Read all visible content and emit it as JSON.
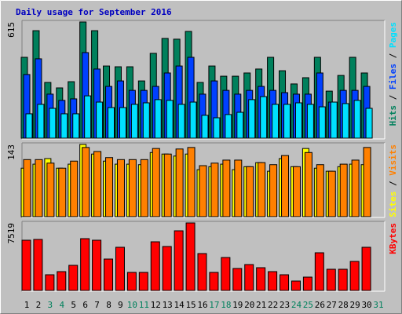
{
  "title": "Daily usage for September 2016",
  "legend_separator": "/",
  "chart_data": [
    {
      "type": "bar",
      "ylim": [
        0,
        615
      ],
      "yticks": [
        615
      ],
      "series": [
        {
          "name": "Hits",
          "color": "#00805c",
          "values": [
            428,
            569,
            295,
            266,
            299,
            615,
            569,
            382,
            378,
            378,
            303,
            449,
            528,
            524,
            565,
            295,
            382,
            328,
            328,
            345,
            366,
            428,
            357,
            287,
            320,
            428,
            249,
            332,
            428,
            345,
            null
          ]
        },
        {
          "name": "Files",
          "color": "#0040ff",
          "values": [
            337,
            420,
            233,
            200,
            208,
            453,
            366,
            274,
            303,
            253,
            253,
            274,
            345,
            382,
            428,
            233,
            303,
            253,
            233,
            253,
            274,
            253,
            241,
            233,
            233,
            345,
            191,
            253,
            253,
            274,
            null
          ]
        },
        {
          "name": "Pages",
          "color": "#00e0ff",
          "values": [
            129,
            179,
            158,
            129,
            129,
            224,
            191,
            162,
            162,
            179,
            187,
            204,
            200,
            179,
            191,
            121,
            108,
            125,
            137,
            204,
            220,
            179,
            179,
            187,
            179,
            166,
            191,
            183,
            200,
            158,
            null
          ]
        }
      ]
    },
    {
      "type": "bar",
      "ylim": [
        0,
        143
      ],
      "yticks": [
        143
      ],
      "series": [
        {
          "name": "Sites",
          "color": "#ffff00",
          "values": [
            96,
            104,
            115,
            96,
            104,
            143,
            124,
            110,
            104,
            104,
            103,
            127,
            124,
            120,
            124,
            93,
            99,
            104,
            93,
            99,
            107,
            90,
            115,
            99,
            135,
            96,
            90,
            99,
            104,
            103,
            null
          ]
        },
        {
          "name": "Visits",
          "color": "#ff8000",
          "values": [
            113,
            113,
            106,
            96,
            110,
            137,
            129,
            117,
            113,
            113,
            113,
            135,
            124,
            134,
            137,
            101,
            106,
            112,
            112,
            99,
            107,
            103,
            121,
            99,
            127,
            103,
            90,
            104,
            112,
            137,
            null
          ]
        }
      ]
    },
    {
      "type": "bar",
      "ylim": [
        0,
        7519
      ],
      "yticks": [
        7519
      ],
      "categories": [
        "1",
        "2",
        "3",
        "4",
        "5",
        "6",
        "7",
        "8",
        "9",
        "10",
        "11",
        "12",
        "13",
        "14",
        "15",
        "16",
        "17",
        "18",
        "19",
        "20",
        "21",
        "22",
        "23",
        "24",
        "25",
        "26",
        "27",
        "28",
        "29",
        "30",
        "31"
      ],
      "category_colors": [
        "#000000",
        "#000000",
        "#00805c",
        "#00805c",
        "#000000",
        "#000000",
        "#000000",
        "#000000",
        "#000000",
        "#00805c",
        "#00805c",
        "#000000",
        "#000000",
        "#000000",
        "#000000",
        "#000000",
        "#00805c",
        "#00805c",
        "#000000",
        "#000000",
        "#000000",
        "#000000",
        "#000000",
        "#00805c",
        "#00805c",
        "#000000",
        "#000000",
        "#000000",
        "#000000",
        "#000000",
        "#00805c"
      ],
      "series": [
        {
          "name": "KBytes",
          "color": "#ff0000",
          "values": [
            5595,
            5683,
            1749,
            2098,
            2798,
            5770,
            5595,
            3497,
            4809,
            2011,
            2011,
            5420,
            4896,
            6645,
            7519,
            4109,
            2011,
            3672,
            2448,
            2885,
            2535,
            2098,
            1749,
            1049,
            1486,
            4197,
            2361,
            2361,
            3235,
            4809,
            null
          ]
        }
      ]
    }
  ]
}
